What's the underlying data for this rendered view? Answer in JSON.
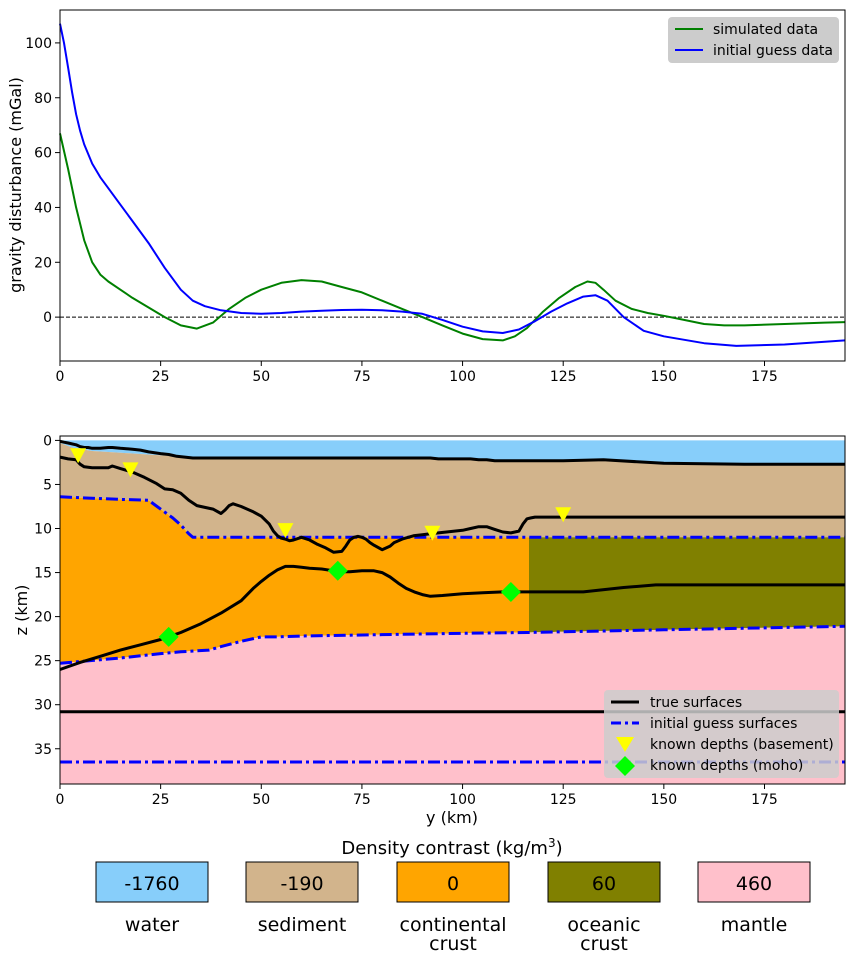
{
  "chart_data": [
    {
      "type": "line",
      "ylabel": "gravity disturbance (mGal)",
      "xlim": [
        0,
        195
      ],
      "ylim": [
        -16,
        112
      ],
      "xticks": [
        0,
        25,
        50,
        75,
        100,
        125,
        150,
        175
      ],
      "yticks": [
        0,
        20,
        40,
        60,
        80,
        100
      ],
      "zero_line": "dashed",
      "legend_position": "top-right",
      "series": [
        {
          "name": "simulated data",
          "color": "#008000",
          "x": [
            0,
            2,
            4,
            6,
            8,
            10,
            12,
            15,
            18,
            22,
            26,
            30,
            34,
            38,
            42,
            46,
            50,
            55,
            60,
            65,
            70,
            75,
            80,
            85,
            90,
            95,
            100,
            105,
            110,
            113,
            116,
            120,
            124,
            128,
            131,
            133,
            135,
            138,
            142,
            146,
            150,
            155,
            160,
            165,
            170,
            180,
            190,
            195
          ],
          "y": [
            67,
            54,
            40,
            28,
            20,
            15.5,
            13,
            10,
            7,
            3.5,
            0,
            -3,
            -4.2,
            -2,
            3,
            7,
            10,
            12.5,
            13.5,
            13,
            11,
            9,
            6,
            3,
            0,
            -3,
            -6,
            -8,
            -8.5,
            -7,
            -4,
            2,
            7,
            11,
            13,
            12.5,
            10,
            6,
            3,
            1.5,
            0.5,
            -1,
            -2.5,
            -3,
            -3,
            -2.5,
            -2,
            -1.8
          ]
        },
        {
          "name": "initial guess data",
          "color": "#0000ff",
          "x": [
            0,
            1,
            2,
            3,
            4,
            5,
            6,
            8,
            10,
            12,
            15,
            18,
            22,
            26,
            30,
            33,
            36,
            40,
            45,
            50,
            55,
            60,
            65,
            70,
            75,
            80,
            85,
            90,
            95,
            100,
            105,
            110,
            114,
            118,
            122,
            126,
            130,
            133,
            136,
            140,
            145,
            150,
            160,
            168,
            180,
            190,
            195
          ],
          "y": [
            107,
            100,
            91,
            82,
            74,
            68,
            63,
            56,
            51,
            47,
            41,
            35,
            27,
            18,
            10,
            6,
            4,
            2.5,
            1.5,
            1.2,
            1.5,
            2,
            2.3,
            2.6,
            2.7,
            2.5,
            2,
            1.2,
            -1,
            -3.5,
            -5.2,
            -5.8,
            -4.5,
            -1.5,
            2,
            5,
            7.5,
            8,
            6,
            0,
            -5,
            -7,
            -9.5,
            -10.5,
            -10,
            -9,
            -8.5
          ]
        }
      ]
    },
    {
      "type": "area",
      "xlabel": "y (km)",
      "ylabel": "z (km)",
      "xlim": [
        0,
        195
      ],
      "ylim": [
        39,
        -0.5
      ],
      "xticks": [
        0,
        25,
        50,
        75,
        100,
        125,
        150,
        175
      ],
      "yticks": [
        0,
        5,
        10,
        15,
        20,
        25,
        30,
        35
      ],
      "legend_position": "lower-right",
      "bottom_limit": 39,
      "layers": [
        {
          "name": "water",
          "color": "#87cefa"
        },
        {
          "name": "sediment",
          "color": "#d2b48c"
        },
        {
          "name": "continental crust",
          "color": "#ffa500"
        },
        {
          "name": "oceanic crust",
          "color": "#808000"
        },
        {
          "name": "mantle",
          "color": "#ffc0cb"
        }
      ],
      "oceanic_crust_start_x": 116.5,
      "oceanic_crust_base_start_depth": 21.8,
      "water_bottom": {
        "x": [
          0,
          3,
          8,
          15,
          25,
          35,
          50,
          65,
          80,
          95,
          110,
          115,
          125,
          135,
          140,
          150,
          165,
          180,
          195
        ],
        "z": [
          0.3,
          0.8,
          1.2,
          1.4,
          1.7,
          1.9,
          2.0,
          2.0,
          2.1,
          2.1,
          2.3,
          2.3,
          2.3,
          2.2,
          2.4,
          2.6,
          2.7,
          2.7,
          2.7
        ]
      },
      "true_surfaces": [
        {
          "x": [
            0,
            1,
            2,
            4,
            5,
            6,
            7,
            8,
            10,
            12,
            13,
            15,
            18,
            20,
            22,
            25,
            27,
            28,
            29,
            31,
            33,
            35,
            37,
            39,
            41,
            43,
            44,
            46,
            48,
            50,
            52,
            53,
            54,
            55,
            56,
            57,
            58,
            60,
            62,
            64,
            66,
            68,
            70,
            71,
            72,
            73,
            74,
            75,
            76,
            77,
            78,
            80,
            82,
            83,
            85,
            88,
            90,
            92,
            94,
            96,
            98,
            100,
            102,
            104,
            106,
            108,
            110,
            112,
            114,
            115,
            116,
            117,
            118,
            119,
            120,
            125,
            135,
            150,
            170,
            195
          ],
          "z": [
            0.1,
            0.2,
            0.3,
            0.5,
            0.7,
            0.8,
            0.8,
            0.9,
            0.9,
            0.8,
            0.8,
            0.9,
            1.0,
            1.1,
            1.3,
            1.5,
            1.6,
            1.7,
            1.8,
            1.9,
            2.0,
            2.0,
            2.0,
            2.0,
            2.0,
            2.0,
            2.0,
            2.0,
            2.0,
            2.0,
            2.0,
            2.0,
            2.0,
            2.0,
            2.0,
            2.0,
            2.0,
            2.0,
            2.0,
            2.0,
            2.0,
            2.0,
            2.0,
            2.0,
            2.0,
            2.0,
            2.0,
            2.0,
            2.0,
            2.0,
            2.0,
            2.0,
            2.0,
            2.0,
            2.0,
            2.0,
            2.0,
            2.0,
            2.1,
            2.1,
            2.1,
            2.1,
            2.1,
            2.2,
            2.2,
            2.3,
            2.3,
            2.3,
            2.3,
            2.3,
            2.3,
            2.3,
            2.3,
            2.3,
            2.3,
            2.3,
            2.2,
            2.6,
            2.7,
            2.7
          ]
        },
        {
          "x": [
            0,
            2,
            4,
            5,
            6,
            8,
            10,
            12,
            13,
            15,
            18,
            21,
            24,
            26,
            28,
            30,
            32,
            34,
            36,
            38,
            40,
            41,
            42,
            43,
            45,
            48,
            50,
            52,
            53,
            54,
            55,
            56,
            57,
            58,
            60,
            62,
            64,
            66,
            68,
            70,
            71,
            72,
            73,
            74,
            75,
            76,
            77,
            78,
            80,
            82,
            83,
            85,
            88,
            90,
            92,
            94,
            96,
            98,
            100,
            102,
            104,
            106,
            108,
            110,
            112,
            114,
            115,
            116,
            117,
            118,
            119,
            120,
            125,
            195
          ],
          "z": [
            1.9,
            2.1,
            2.2,
            2.7,
            3.0,
            3.1,
            3.1,
            3.1,
            2.9,
            3.2,
            3.6,
            4.2,
            4.9,
            5.5,
            5.6,
            6.0,
            6.8,
            7.4,
            7.6,
            7.8,
            8.3,
            7.9,
            7.4,
            7.2,
            7.5,
            8.1,
            8.6,
            9.5,
            10.3,
            10.8,
            11.1,
            11.2,
            11.4,
            11.3,
            11.0,
            11.3,
            11.8,
            12.2,
            12.7,
            12.6,
            12.0,
            11.3,
            11.0,
            10.9,
            11.0,
            11.2,
            11.6,
            11.9,
            12.4,
            12.0,
            11.6,
            11.2,
            10.8,
            10.7,
            10.6,
            10.5,
            10.4,
            10.3,
            10.2,
            10.0,
            9.8,
            9.8,
            10.1,
            10.4,
            10.5,
            10.3,
            9.5,
            8.9,
            8.8,
            8.7,
            8.7,
            8.7,
            8.7,
            8.7
          ]
        },
        {
          "x": [
            0,
            5,
            10,
            15,
            20,
            25,
            30,
            35,
            40,
            45,
            48,
            50,
            52,
            54,
            56,
            58,
            60,
            62,
            65,
            68,
            70,
            72,
            75,
            78,
            80,
            82,
            84,
            86,
            88,
            90,
            92,
            95,
            100,
            105,
            110,
            116,
            125,
            130,
            140,
            148,
            160,
            175,
            195
          ],
          "z": [
            26.0,
            25.2,
            24.5,
            23.8,
            23.2,
            22.6,
            21.8,
            20.8,
            19.6,
            18.2,
            16.8,
            16.0,
            15.3,
            14.7,
            14.3,
            14.3,
            14.4,
            14.5,
            14.6,
            14.8,
            14.9,
            14.9,
            14.8,
            14.8,
            15.0,
            15.5,
            16.2,
            16.8,
            17.2,
            17.5,
            17.7,
            17.6,
            17.4,
            17.3,
            17.2,
            17.2,
            17.2,
            17.2,
            16.7,
            16.4,
            16.4,
            16.4,
            16.4
          ]
        },
        {
          "x": [
            0,
            195
          ],
          "z": [
            30.8,
            30.8
          ]
        }
      ],
      "initial_guess_surfaces": [
        {
          "x": [
            0,
            5,
            15,
            22,
            25,
            28,
            30,
            32,
            33,
            36,
            50,
            80,
            116,
            195
          ],
          "z": [
            6.4,
            6.5,
            6.7,
            6.8,
            7.8,
            8.8,
            9.6,
            10.6,
            11.0,
            11.0,
            11.0,
            11.0,
            11.0,
            11.0
          ]
        },
        {
          "x": [
            0,
            15,
            25,
            30,
            37,
            40,
            45,
            50,
            52,
            54,
            60,
            100,
            116,
            150,
            195
          ],
          "z": [
            25.3,
            24.7,
            24.2,
            24.0,
            23.8,
            23.4,
            22.8,
            22.3,
            22.3,
            22.3,
            22.2,
            21.9,
            21.8,
            21.5,
            21.1
          ]
        },
        {
          "x": [
            0,
            195
          ],
          "z": [
            36.5,
            36.5
          ]
        }
      ],
      "known_depths_basement": {
        "x": [
          4.5,
          17.5,
          56,
          92.5,
          125
        ],
        "z": [
          1.8,
          3.4,
          10.3,
          10.6,
          8.5
        ]
      },
      "known_depths_moho": {
        "x": [
          27,
          69,
          112
        ],
        "z": [
          22.3,
          14.8,
          17.2
        ]
      },
      "legend": [
        "true surfaces",
        "initial guess surfaces",
        "known depths (basement)",
        "known depths (moho)"
      ]
    }
  ],
  "density_panel": {
    "title": "Density contrast (kg/m",
    "title_sup": "3",
    "title_end": ")",
    "boxes": [
      {
        "value": "-1760",
        "label": [
          "water"
        ],
        "color": "#87cefa"
      },
      {
        "value": "-190",
        "label": [
          "sediment"
        ],
        "color": "#d2b48c"
      },
      {
        "value": "0",
        "label": [
          "continental",
          "crust"
        ],
        "color": "#ffa500"
      },
      {
        "value": "60",
        "label": [
          "oceanic",
          "crust"
        ],
        "color": "#808000"
      },
      {
        "value": "460",
        "label": [
          "mantle"
        ],
        "color": "#ffc0cb"
      }
    ]
  }
}
